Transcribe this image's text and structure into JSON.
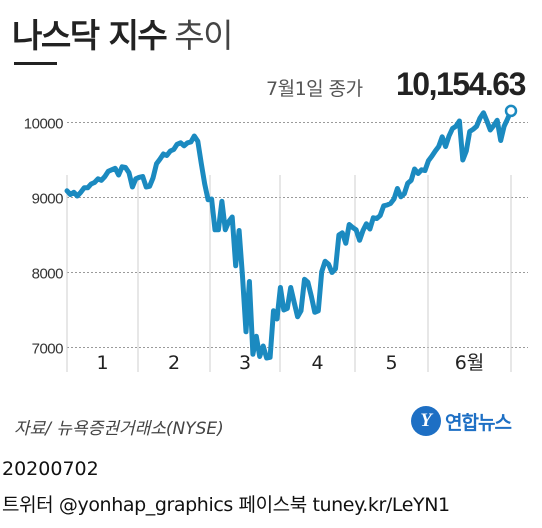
{
  "title": {
    "main": "나스닥 지수",
    "sub": "추이"
  },
  "annotation": {
    "label": "7월1일 종가",
    "value": "10,154.63"
  },
  "source": "자료/ 뉴욕증권거래소(NYSE)",
  "brand": {
    "logo_letter": "Y",
    "name": "연합뉴스"
  },
  "footer": {
    "date": "20200702",
    "social": "트위터 @yonhap_graphics  페이스북 tuney.kr/LeYN1"
  },
  "colors": {
    "line": "#1b8ac0",
    "grid": "#9a9a9a",
    "brand": "#1d6fc4"
  },
  "chart_data": {
    "type": "line",
    "title": "나스닥 지수 추이",
    "xlabel": "",
    "ylabel": "",
    "ylim": [
      6700,
      10300
    ],
    "yticks": [
      7000,
      8000,
      9000,
      10000
    ],
    "ytick_labels": [
      "7000",
      "8000",
      "9000",
      "10000"
    ],
    "month_labels": [
      "1",
      "2",
      "3",
      "4",
      "5",
      "6월"
    ],
    "grid": true,
    "series": [
      {
        "name": "",
        "values": [
          9090,
          9040,
          9070,
          9020,
          9070,
          9130,
          9130,
          9180,
          9200,
          9250,
          9230,
          9280,
          9350,
          9370,
          9390,
          9300,
          9410,
          9400,
          9330,
          9140,
          9250,
          9270,
          9280,
          9140,
          9150,
          9260,
          9450,
          9510,
          9580,
          9560,
          9620,
          9640,
          9710,
          9730,
          9690,
          9730,
          9740,
          9820,
          9750,
          9460,
          9180,
          8970,
          8980,
          8570,
          8570,
          8950,
          8570,
          8680,
          8740,
          8090,
          8560,
          7950,
          7210,
          7880,
          6910,
          7150,
          6880,
          7020,
          6860,
          6870,
          7490,
          7380,
          7800,
          7500,
          7520,
          7800,
          7600,
          7410,
          7490,
          7910,
          7870,
          7680,
          7470,
          7490,
          8010,
          8150,
          8110,
          8000,
          8050,
          8500,
          8530,
          8390,
          8640,
          8600,
          8570,
          8430,
          8560,
          8650,
          8580,
          8730,
          8720,
          8760,
          8890,
          8900,
          8920,
          8980,
          9120,
          9010,
          9050,
          9190,
          9230,
          9380,
          9320,
          9370,
          9360,
          9490,
          9550,
          9620,
          9680,
          9810,
          9680,
          9820,
          9920,
          9950,
          10020,
          9500,
          9620,
          9880,
          9910,
          9950,
          10060,
          10130,
          10020,
          9900,
          9960,
          10030,
          9760,
          9950,
          10050,
          10154.63
        ]
      }
    ]
  }
}
